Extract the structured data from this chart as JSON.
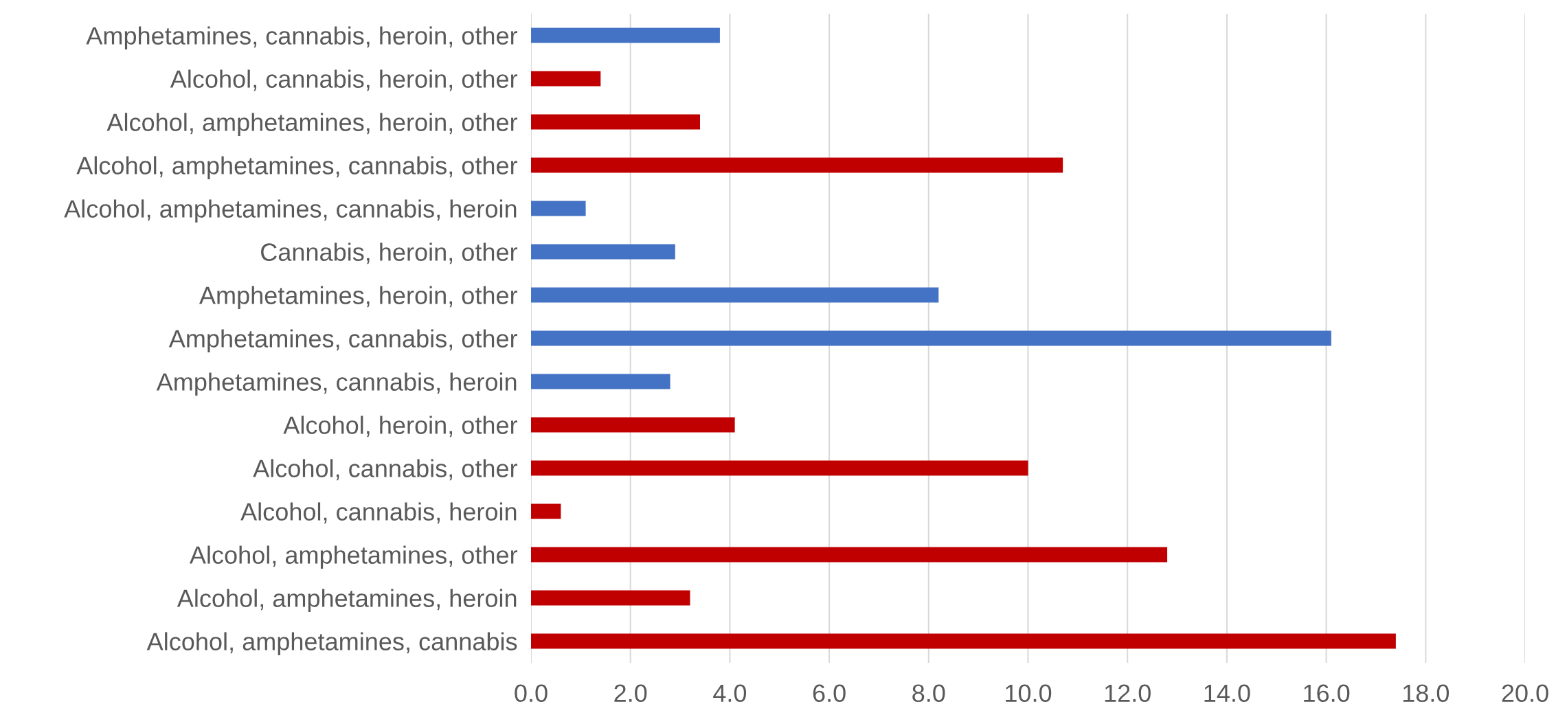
{
  "chart_data": {
    "type": "bar",
    "orientation": "horizontal",
    "categories": [
      "Amphetamines, cannabis, heroin, other",
      "Alcohol, cannabis, heroin, other",
      "Alcohol, amphetamines, heroin, other",
      "Alcohol, amphetamines, cannabis, other",
      "Alcohol, amphetamines, cannabis, heroin",
      "Cannabis, heroin, other",
      "Amphetamines, heroin, other",
      "Amphetamines, cannabis, other",
      "Amphetamines, cannabis, heroin",
      "Alcohol, heroin, other",
      "Alcohol, cannabis, other",
      "Alcohol, cannabis, heroin",
      "Alcohol, amphetamines, other",
      "Alcohol, amphetamines, heroin",
      "Alcohol, amphetamines, cannabis"
    ],
    "values": [
      3.8,
      1.4,
      3.4,
      10.7,
      1.1,
      2.9,
      8.2,
      16.1,
      2.8,
      4.1,
      10.0,
      0.6,
      12.8,
      3.2,
      17.4
    ],
    "colors": [
      "#4472c4",
      "#c00000",
      "#c00000",
      "#c00000",
      "#4472c4",
      "#4472c4",
      "#4472c4",
      "#4472c4",
      "#4472c4",
      "#c00000",
      "#c00000",
      "#c00000",
      "#c00000",
      "#c00000",
      "#c00000"
    ],
    "xlim": [
      0,
      20
    ],
    "xticks": [
      {
        "value": 0,
        "label": "0.0"
      },
      {
        "value": 2,
        "label": "2.0"
      },
      {
        "value": 4,
        "label": "4.0"
      },
      {
        "value": 6,
        "label": "6.0"
      },
      {
        "value": 8,
        "label": "8.0"
      },
      {
        "value": 10,
        "label": "10.0"
      },
      {
        "value": 12,
        "label": "12.0"
      },
      {
        "value": 14,
        "label": "14.0"
      },
      {
        "value": 16,
        "label": "16.0"
      },
      {
        "value": 18,
        "label": "18.0"
      },
      {
        "value": 20,
        "label": "20.0"
      }
    ],
    "grid": "x"
  }
}
